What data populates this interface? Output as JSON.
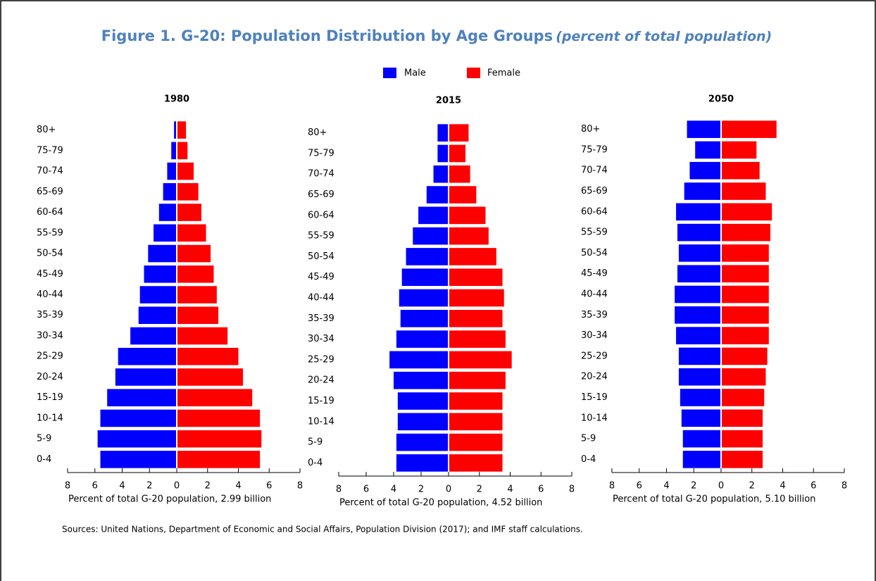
{
  "title": "Figure 1. G-20: Population Distribution by Age Groups",
  "subtitle": "(percent of total population)",
  "note": "Sources: United Nations, Department of Economic and Social Affairs, Population Division  (2017); and IMF staff calculations.",
  "chart_data": [
    {
      "type": "pyramid",
      "title": "1980",
      "categories": [
        "0-4",
        "5-9",
        "10-14",
        "15-19",
        "20-24",
        "25-29",
        "30-34",
        "35-39",
        "40-44",
        "45-49",
        "50-54",
        "55-59",
        "60-64",
        "65-69",
        "70-74",
        "75-79",
        "80+"
      ],
      "series": [
        {
          "name": "Male",
          "color": "#0000ff",
          "values": [
            -5.6,
            -5.8,
            -5.6,
            -5.1,
            -4.5,
            -4.3,
            -3.4,
            -2.8,
            -2.7,
            -2.4,
            -2.1,
            -1.7,
            -1.3,
            -1.0,
            -0.7,
            -0.4,
            -0.2
          ]
        },
        {
          "name": "Female",
          "color": "#ff0000",
          "values": [
            5.4,
            5.5,
            5.4,
            4.9,
            4.3,
            4.0,
            3.3,
            2.7,
            2.6,
            2.4,
            2.2,
            1.9,
            1.6,
            1.4,
            1.1,
            0.7,
            0.6
          ]
        }
      ],
      "xlim": [
        -8,
        8
      ],
      "xticks": [
        {
          "value": -8,
          "label": "8"
        },
        {
          "value": -6,
          "label": "6"
        },
        {
          "value": -4,
          "label": "4"
        },
        {
          "value": -2,
          "label": "2"
        },
        0,
        2,
        4,
        6,
        8
      ],
      "xlabel": "Percent of total G-20 population, 2.99 billion"
    },
    {
      "type": "pyramid",
      "title": "2015",
      "categories": [
        "0-4",
        "5-9",
        "10-14",
        "15-19",
        "20-24",
        "25-29",
        "30-34",
        "35-39",
        "40-44",
        "45-49",
        "50-54",
        "55-59",
        "60-64",
        "65-69",
        "70-74",
        "75-79",
        "80+"
      ],
      "series": [
        {
          "name": "Male",
          "color": "#0000ff",
          "values": [
            -3.8,
            -3.8,
            -3.7,
            -3.7,
            -4.0,
            -4.3,
            -3.8,
            -3.5,
            -3.6,
            -3.4,
            -3.1,
            -2.6,
            -2.2,
            -1.6,
            -1.1,
            -0.8,
            -0.8
          ]
        },
        {
          "name": "Female",
          "color": "#ff0000",
          "values": [
            3.5,
            3.5,
            3.5,
            3.5,
            3.7,
            4.1,
            3.7,
            3.5,
            3.6,
            3.5,
            3.1,
            2.6,
            2.4,
            1.8,
            1.4,
            1.1,
            1.3
          ]
        }
      ],
      "xlim": [
        -8,
        8
      ],
      "xticks": [
        {
          "value": -8,
          "label": "8"
        },
        {
          "value": -6,
          "label": "6"
        },
        {
          "value": -4,
          "label": "4"
        },
        {
          "value": -2,
          "label": "2"
        },
        0,
        2,
        4,
        6,
        8
      ],
      "xlabel": "Percent of total G-20 population, 4.52 billion"
    },
    {
      "type": "pyramid",
      "title": "2050",
      "categories": [
        "0-4",
        "5-9",
        "10-14",
        "15-19",
        "20-24",
        "25-29",
        "30-34",
        "35-39",
        "40-44",
        "45-49",
        "50-54",
        "55-59",
        "60-64",
        "65-69",
        "70-74",
        "75-79",
        "80+"
      ],
      "series": [
        {
          "name": "Male",
          "color": "#0000ff",
          "values": [
            -2.8,
            -2.8,
            -2.9,
            -3.0,
            -3.1,
            -3.1,
            -3.3,
            -3.4,
            -3.4,
            -3.2,
            -3.1,
            -3.2,
            -3.3,
            -2.7,
            -2.3,
            -1.9,
            -2.5
          ]
        },
        {
          "name": "Female",
          "color": "#ff0000",
          "values": [
            2.7,
            2.7,
            2.7,
            2.8,
            2.9,
            3.0,
            3.1,
            3.1,
            3.1,
            3.1,
            3.1,
            3.2,
            3.3,
            2.9,
            2.5,
            2.3,
            3.6
          ]
        }
      ],
      "xlim": [
        -8,
        8
      ],
      "xticks": [
        {
          "value": -8,
          "label": "8"
        },
        {
          "value": -6,
          "label": "6"
        },
        {
          "value": -4,
          "label": "4"
        },
        {
          "value": -2,
          "label": "2"
        },
        0,
        2,
        4,
        6,
        8
      ],
      "xlabel": "Percent of total G-20 population, 5.10 billion"
    }
  ]
}
